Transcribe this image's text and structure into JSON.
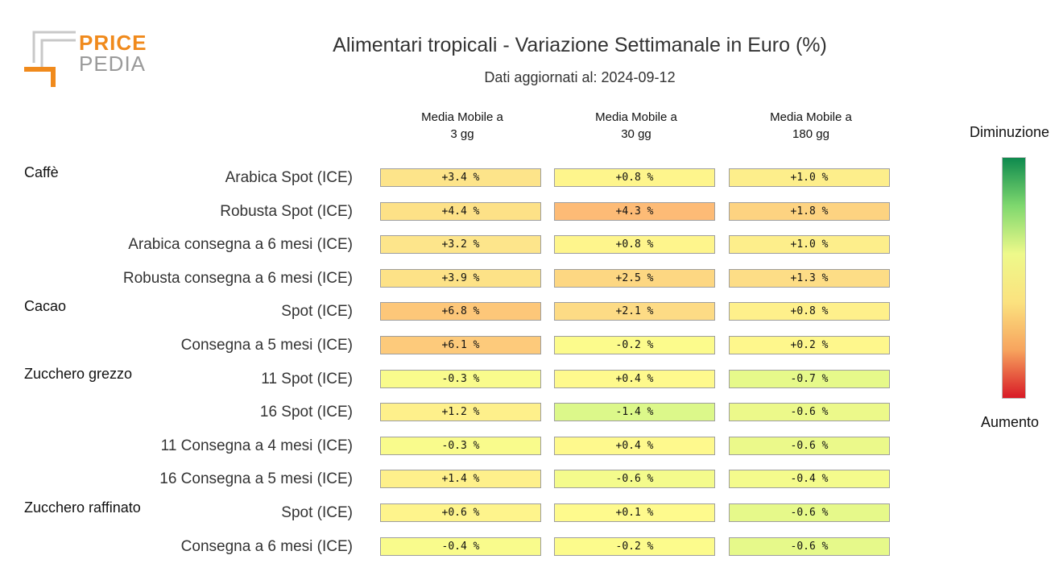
{
  "logo": {
    "line1": "PRICE",
    "line2": "PEDIA"
  },
  "chart_data": {
    "type": "heatmap",
    "title": "Alimentari tropicali - Variazione Settimanale in Euro (%)",
    "subtitle": "Dati aggiornati al: 2024-09-12",
    "columns": [
      "Media Mobile a\n3 gg",
      "Media Mobile a\n30 gg",
      "Media Mobile a\n180 gg"
    ],
    "groups": [
      {
        "name": "Caffè",
        "rows": [
          {
            "label": "Arabica Spot (ICE)",
            "values": [
              "+3.4 %",
              "+0.8 %",
              "+1.0 %"
            ],
            "colors": [
              "#fde48a",
              "#fef58c",
              "#fdee8b"
            ]
          },
          {
            "label": "Robusta Spot (ICE)",
            "values": [
              "+4.4 %",
              "+4.3 %",
              "+1.8 %"
            ],
            "colors": [
              "#fde187",
              "#fdbb76",
              "#fdd381"
            ]
          },
          {
            "label": "Arabica consegna a 6 mesi (ICE)",
            "values": [
              "+3.2 %",
              "+0.8 %",
              "+1.0 %"
            ],
            "colors": [
              "#fde58b",
              "#fef58c",
              "#fdee8b"
            ]
          },
          {
            "label": "Robusta consegna a 6 mesi (ICE)",
            "values": [
              "+3.9 %",
              "+2.5 %",
              "+1.3 %"
            ],
            "colors": [
              "#fde287",
              "#fdd782",
              "#fddd86"
            ]
          }
        ]
      },
      {
        "name": "Cacao",
        "rows": [
          {
            "label": "Spot (ICE)",
            "values": [
              "+6.8 %",
              "+2.1 %",
              "+0.8 %"
            ],
            "colors": [
              "#fdc779",
              "#fddb85",
              "#fef08b"
            ]
          },
          {
            "label": "Consegna a 5 mesi (ICE)",
            "values": [
              "+6.1 %",
              "-0.2 %",
              "+0.2 %"
            ],
            "colors": [
              "#fdca7b",
              "#fcfb8c",
              "#fef78c"
            ]
          }
        ]
      },
      {
        "name": "Zucchero grezzo",
        "rows": [
          {
            "label": "11 Spot (ICE)",
            "values": [
              "-0.3 %",
              "+0.4 %",
              "-0.7 %"
            ],
            "colors": [
              "#f9fb8c",
              "#fef98d",
              "#e6f98a"
            ]
          },
          {
            "label": "16 Spot (ICE)",
            "values": [
              "+1.2 %",
              "-1.4 %",
              "-0.6 %"
            ],
            "colors": [
              "#fef08b",
              "#dcf88a",
              "#ecf98a"
            ]
          },
          {
            "label": "11 Consegna a 4 mesi (ICE)",
            "values": [
              "-0.3 %",
              "+0.4 %",
              "-0.6 %"
            ],
            "colors": [
              "#f9fb8c",
              "#fef98d",
              "#ebf98a"
            ]
          },
          {
            "label": "16 Consegna a 5 mesi (ICE)",
            "values": [
              "+1.4 %",
              "-0.6 %",
              "-0.4 %"
            ],
            "colors": [
              "#fef08b",
              "#f4fb8c",
              "#f4fb8c"
            ]
          }
        ]
      },
      {
        "name": "Zucchero raffinato",
        "rows": [
          {
            "label": "Spot (ICE)",
            "values": [
              "+0.6 %",
              "+0.1 %",
              "-0.6 %"
            ],
            "colors": [
              "#fef48c",
              "#fefa8d",
              "#e6f98a"
            ]
          },
          {
            "label": "Consegna a 6 mesi (ICE)",
            "values": [
              "-0.4 %",
              "-0.2 %",
              "-0.6 %"
            ],
            "colors": [
              "#f9fb8c",
              "#fcfb8c",
              "#e6f98a"
            ]
          }
        ]
      }
    ],
    "legend": {
      "top": "Diminuzione",
      "bottom": "Aumento",
      "gradient": [
        "#0e8a4e",
        "#7fd86e",
        "#eef98a",
        "#fbe27f",
        "#f7a45e",
        "#d81a26"
      ]
    }
  }
}
